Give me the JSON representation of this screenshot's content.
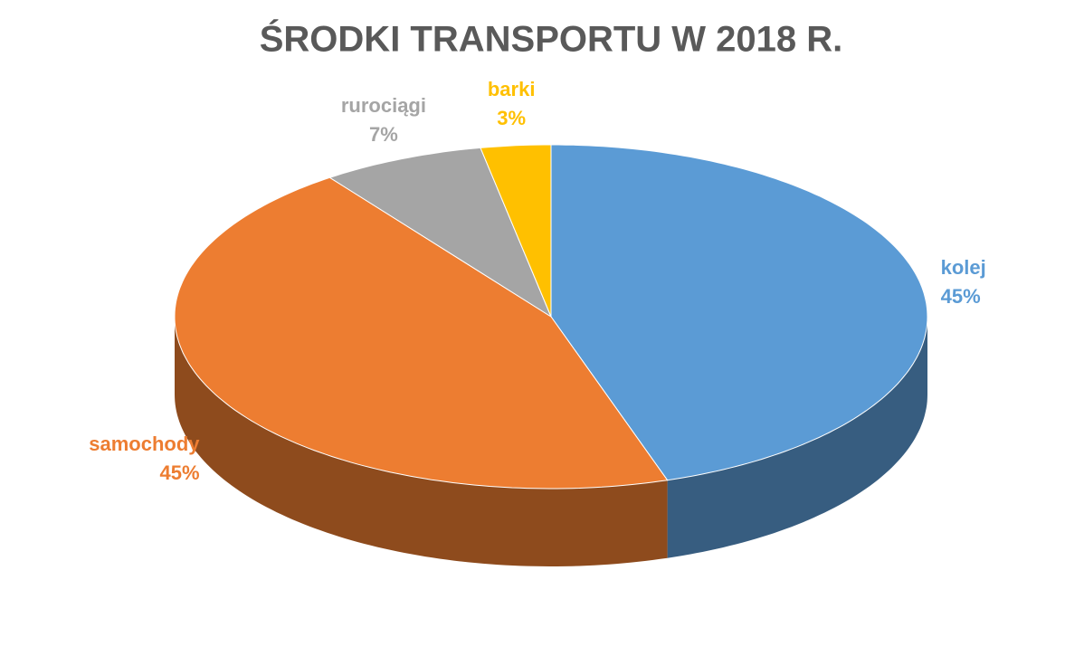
{
  "chart_data": {
    "type": "pie",
    "title": "ŚRODKI TRANSPORTU W 2018 R.",
    "categories": [
      "kolej",
      "samochody",
      "rurociągi",
      "barki"
    ],
    "values": [
      45,
      45,
      7,
      3
    ],
    "value_labels": [
      "45%",
      "45%",
      "7%",
      "3%"
    ],
    "colors": [
      "#5b9bd5",
      "#ed7d31",
      "#a5a5a5",
      "#ffc000"
    ]
  }
}
